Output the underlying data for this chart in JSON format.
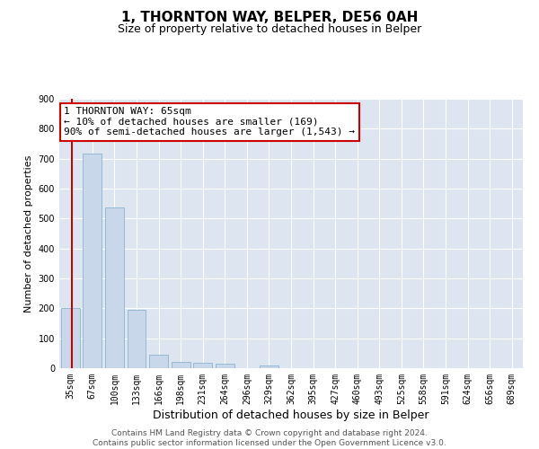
{
  "title": "1, THORNTON WAY, BELPER, DE56 0AH",
  "subtitle": "Size of property relative to detached houses in Belper",
  "xlabel": "Distribution of detached houses by size in Belper",
  "ylabel": "Number of detached properties",
  "bin_labels": [
    "35sqm",
    "67sqm",
    "100sqm",
    "133sqm",
    "166sqm",
    "198sqm",
    "231sqm",
    "264sqm",
    "296sqm",
    "329sqm",
    "362sqm",
    "395sqm",
    "427sqm",
    "460sqm",
    "493sqm",
    "525sqm",
    "558sqm",
    "591sqm",
    "624sqm",
    "656sqm",
    "689sqm"
  ],
  "bar_values": [
    202,
    718,
    537,
    194,
    46,
    22,
    18,
    15,
    0,
    8,
    0,
    0,
    0,
    0,
    0,
    0,
    0,
    0,
    0,
    0,
    0
  ],
  "bar_color": "#c8d8ea",
  "bar_edge_color": "#8ab4cc",
  "highlight_line_color": "#cc0000",
  "annotation_box_color": "#cc0000",
  "ylim": [
    0,
    900
  ],
  "yticks": [
    0,
    100,
    200,
    300,
    400,
    500,
    600,
    700,
    800,
    900
  ],
  "plot_bg_color": "#dde6f0",
  "footer_line1": "Contains HM Land Registry data © Crown copyright and database right 2024.",
  "footer_line2": "Contains public sector information licensed under the Open Government Licence v3.0.",
  "title_fontsize": 11,
  "subtitle_fontsize": 9,
  "xlabel_fontsize": 9,
  "ylabel_fontsize": 8,
  "tick_fontsize": 7,
  "annotation_fontsize": 8,
  "footer_fontsize": 6.5
}
